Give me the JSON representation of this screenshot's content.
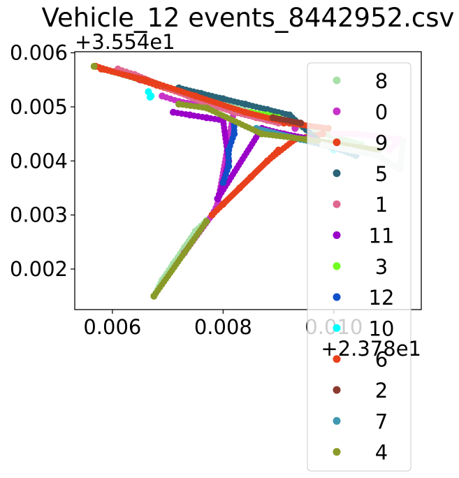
{
  "chart_data": {
    "type": "scatter",
    "title": "Vehicle_12 events_8442952.csv",
    "xlabel": "",
    "ylabel": "",
    "x_offset_text": "+2.378e1",
    "y_offset_text": "+3.554e1",
    "xlim": [
      0.00532,
      0.01158
    ],
    "ylim": [
      0.00125,
      0.00602
    ],
    "x_ticks": [
      0.006,
      0.008,
      0.01
    ],
    "x_tick_labels": [
      "0.006",
      "0.008",
      "0.010"
    ],
    "y_ticks": [
      0.002,
      0.003,
      0.004,
      0.005,
      0.006
    ],
    "y_tick_labels": [
      "0.002",
      "0.003",
      "0.004",
      "0.005",
      "0.006"
    ],
    "grid": false,
    "legend_position": "right",
    "series": [
      {
        "name": "8",
        "color": "#a8e0a8",
        "points": [
          [
            0.00675,
            0.0015
          ],
          [
            0.0069,
            0.0018
          ],
          [
            0.0071,
            0.0021
          ],
          [
            0.0073,
            0.0024
          ],
          [
            0.0075,
            0.0027
          ],
          [
            0.0077,
            0.0029
          ],
          [
            0.006,
            0.00565
          ],
          [
            0.0065,
            0.0055
          ],
          [
            0.0072,
            0.0053
          ],
          [
            0.0085,
            0.0049
          ],
          [
            0.0095,
            0.0046
          ],
          [
            0.0105,
            0.0043
          ]
        ]
      },
      {
        "name": "0",
        "color": "#c832c8",
        "points": [
          [
            0.0069,
            0.0052
          ],
          [
            0.0072,
            0.0051
          ],
          [
            0.0075,
            0.00505
          ],
          [
            0.0079,
            0.005
          ],
          [
            0.0082,
            0.00495
          ],
          [
            0.0079,
            0.0032
          ],
          [
            0.0078,
            0.003
          ],
          [
            0.0073,
            0.0023
          ],
          [
            0.0065,
            0.0055
          ],
          [
            0.0093,
            0.0046
          ]
        ]
      },
      {
        "name": "9",
        "color": "#e8401c",
        "points": [
          [
            0.0057,
            0.00575
          ],
          [
            0.0062,
            0.0056
          ],
          [
            0.0068,
            0.0054
          ],
          [
            0.0074,
            0.0052
          ],
          [
            0.008,
            0.005
          ],
          [
            0.0086,
            0.0048
          ],
          [
            0.0091,
            0.0047
          ],
          [
            0.0078,
            0.003
          ],
          [
            0.0083,
            0.0035
          ],
          [
            0.0088,
            0.004
          ],
          [
            0.0093,
            0.0044
          ],
          [
            0.0098,
            0.0045
          ]
        ]
      },
      {
        "name": "5",
        "color": "#2a6478",
        "points": [
          [
            0.0072,
            0.00535
          ],
          [
            0.0076,
            0.00525
          ],
          [
            0.008,
            0.00515
          ],
          [
            0.0084,
            0.00505
          ],
          [
            0.0088,
            0.00495
          ],
          [
            0.0092,
            0.00485
          ],
          [
            0.0098,
            0.0043
          ],
          [
            0.0102,
            0.0042
          ]
        ]
      },
      {
        "name": "1",
        "color": "#e06890",
        "points": [
          [
            0.0061,
            0.0057
          ],
          [
            0.0064,
            0.0056
          ],
          [
            0.007,
            0.00535
          ],
          [
            0.0076,
            0.0051
          ],
          [
            0.0082,
            0.0049
          ],
          [
            0.0088,
            0.00475
          ],
          [
            0.009,
            0.0047
          ]
        ]
      },
      {
        "name": "11",
        "color": "#9a00c8",
        "points": [
          [
            0.0071,
            0.0049
          ],
          [
            0.0074,
            0.00485
          ],
          [
            0.0077,
            0.0048
          ],
          [
            0.008,
            0.00475
          ],
          [
            0.0081,
            0.004
          ],
          [
            0.008,
            0.0036
          ],
          [
            0.0079,
            0.0033
          ],
          [
            0.0087,
            0.0046
          ],
          [
            0.0091,
            0.0045
          ],
          [
            0.0096,
            0.0044
          ]
        ]
      },
      {
        "name": "3",
        "color": "#70ff20",
        "points": [
          [
            0.0085,
            0.0049
          ],
          [
            0.0088,
            0.00485
          ],
          [
            0.009,
            0.0048
          ]
        ]
      },
      {
        "name": "12",
        "color": "#1050c8",
        "points": [
          [
            0.0082,
            0.0047
          ],
          [
            0.0082,
            0.0045
          ],
          [
            0.0081,
            0.0042
          ],
          [
            0.0081,
            0.0039
          ],
          [
            0.008,
            0.0036
          ]
        ]
      },
      {
        "name": "10",
        "color": "#00ffff",
        "points": [
          [
            0.00665,
            0.00528
          ],
          [
            0.00668,
            0.00518
          ],
          [
            0.0067,
            0.0052
          ],
          [
            0.01,
            0.0042
          ]
        ]
      },
      {
        "name": "6",
        "color": "#e8401c",
        "points": [
          [
            0.0058,
            0.0057
          ],
          [
            0.0066,
            0.0055
          ],
          [
            0.0075,
            0.0052
          ],
          [
            0.0084,
            0.0049
          ],
          [
            0.0092,
            0.0047
          ],
          [
            0.0099,
            0.0046
          ],
          [
            0.008,
            0.0032
          ],
          [
            0.0085,
            0.0037
          ],
          [
            0.009,
            0.0042
          ]
        ]
      },
      {
        "name": "2",
        "color": "#8b3a2e",
        "points": [
          [
            0.0089,
            0.0048
          ],
          [
            0.0094,
            0.0047
          ]
        ]
      },
      {
        "name": "7",
        "color": "#4098b0",
        "points": [
          [
            0.0086,
            0.0046
          ],
          [
            0.0094,
            0.0044
          ],
          [
            0.01,
            0.00425
          ],
          [
            0.0104,
            0.0041
          ]
        ]
      },
      {
        "name": "4",
        "color": "#8a9a28",
        "points": [
          [
            0.00567,
            0.00575
          ],
          [
            0.00675,
            0.0015
          ],
          [
            0.0077,
            0.00288
          ],
          [
            0.0072,
            0.00505
          ],
          [
            0.0077,
            0.00498
          ],
          [
            0.0087,
            0.0045
          ],
          [
            0.0095,
            0.0044
          ],
          [
            0.0108,
            0.0042
          ]
        ]
      },
      {
        "name": "",
        "color": "#ffccee",
        "points": [
          [
            0.01,
            0.0045
          ],
          [
            0.0104,
            0.0045
          ],
          [
            0.0108,
            0.00445
          ],
          [
            0.0112,
            0.0044
          ],
          [
            0.011,
            0.0042
          ]
        ]
      },
      {
        "name": "",
        "color": "#dde8e0",
        "points": [
          [
            0.0098,
            0.0043
          ],
          [
            0.0103,
            0.0042
          ],
          [
            0.0108,
            0.0041
          ],
          [
            0.0111,
            0.0039
          ],
          [
            0.0112,
            0.00385
          ],
          [
            0.01125,
            0.00438
          ]
        ]
      }
    ]
  }
}
